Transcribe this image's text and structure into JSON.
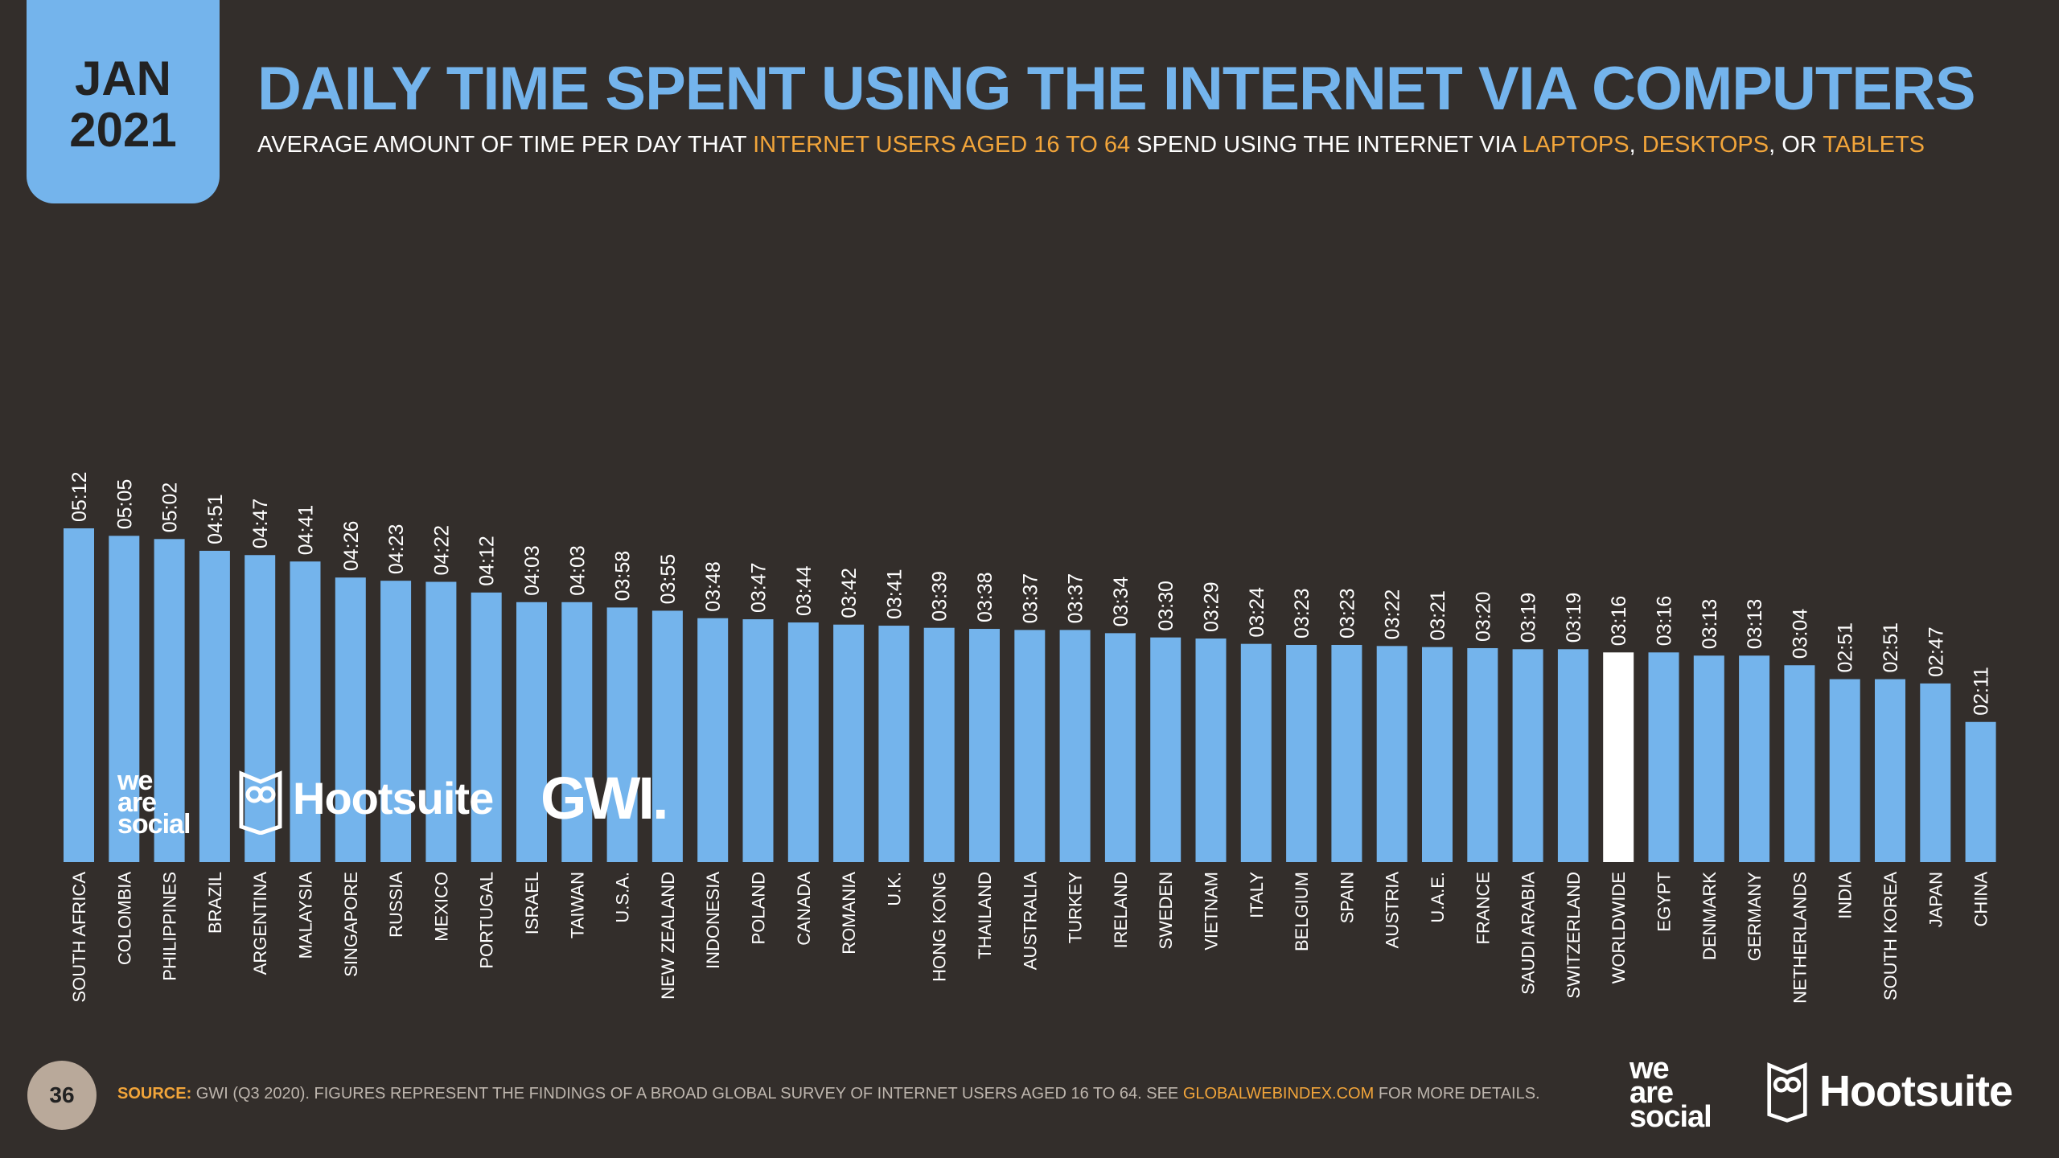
{
  "badge": {
    "month": "JAN",
    "year": "2021"
  },
  "header": {
    "title": "DAILY TIME SPENT USING THE INTERNET VIA COMPUTERS",
    "subtitle": {
      "p1": "AVERAGE AMOUNT OF TIME PER DAY THAT ",
      "h1": "INTERNET USERS AGED 16 TO 64",
      "p2": " SPEND USING THE INTERNET VIA ",
      "h2": "LAPTOPS",
      "p3": ", ",
      "h3": "DESKTOPS",
      "p4": ", OR ",
      "h4": "TABLETS"
    }
  },
  "colors": {
    "bar": "#74b4ec",
    "highlight": "#ffffff",
    "background": "#332e2b",
    "accent": "#f2a53a"
  },
  "chart_data": {
    "type": "bar",
    "title": "DAILY TIME SPENT USING THE INTERNET VIA COMPUTERS",
    "value_format": "hh:mm",
    "highlight_category": "WORLDWIDE",
    "categories": [
      "SOUTH AFRICA",
      "COLOMBIA",
      "PHILIPPINES",
      "BRAZIL",
      "ARGENTINA",
      "MALAYSIA",
      "SINGAPORE",
      "RUSSIA",
      "MEXICO",
      "PORTUGAL",
      "ISRAEL",
      "TAIWAN",
      "U.S.A.",
      "NEW ZEALAND",
      "INDONESIA",
      "POLAND",
      "CANADA",
      "ROMANIA",
      "U.K.",
      "HONG KONG",
      "THAILAND",
      "AUSTRALIA",
      "TURKEY",
      "IRELAND",
      "SWEDEN",
      "VIETNAM",
      "ITALY",
      "BELGIUM",
      "SPAIN",
      "AUSTRIA",
      "U.A.E.",
      "FRANCE",
      "SAUDI ARABIA",
      "SWITZERLAND",
      "WORLDWIDE",
      "EGYPT",
      "DENMARK",
      "GERMANY",
      "NETHERLANDS",
      "INDIA",
      "SOUTH KOREA",
      "JAPAN",
      "CHINA"
    ],
    "labels": [
      "05:12",
      "05:05",
      "05:02",
      "04:51",
      "04:47",
      "04:41",
      "04:26",
      "04:23",
      "04:22",
      "04:12",
      "04:03",
      "04:03",
      "03:58",
      "03:55",
      "03:48",
      "03:47",
      "03:44",
      "03:42",
      "03:41",
      "03:39",
      "03:38",
      "03:37",
      "03:37",
      "03:34",
      "03:30",
      "03:29",
      "03:24",
      "03:23",
      "03:23",
      "03:22",
      "03:21",
      "03:20",
      "03:19",
      "03:19",
      "03:16",
      "03:16",
      "03:13",
      "03:13",
      "03:04",
      "02:51",
      "02:51",
      "02:47",
      "02:11"
    ],
    "values": [
      312,
      305,
      302,
      291,
      287,
      281,
      266,
      263,
      262,
      252,
      243,
      243,
      238,
      235,
      228,
      227,
      224,
      222,
      221,
      219,
      218,
      217,
      217,
      214,
      210,
      209,
      204,
      203,
      203,
      202,
      201,
      200,
      199,
      199,
      196,
      196,
      193,
      193,
      184,
      171,
      171,
      167,
      131
    ]
  },
  "logos": {
    "wearesocial": "we are social",
    "hootsuite": "Hootsuite",
    "gwi": "GWI."
  },
  "footer": {
    "page": "36",
    "source_label": "SOURCE:",
    "source_text": " GWI (Q3 2020). FIGURES REPRESENT THE FINDINGS OF A BROAD GLOBAL SURVEY OF INTERNET USERS AGED 16 TO 64. SEE ",
    "source_link": "GLOBALWEBINDEX.COM",
    "source_end": " FOR MORE DETAILS."
  }
}
